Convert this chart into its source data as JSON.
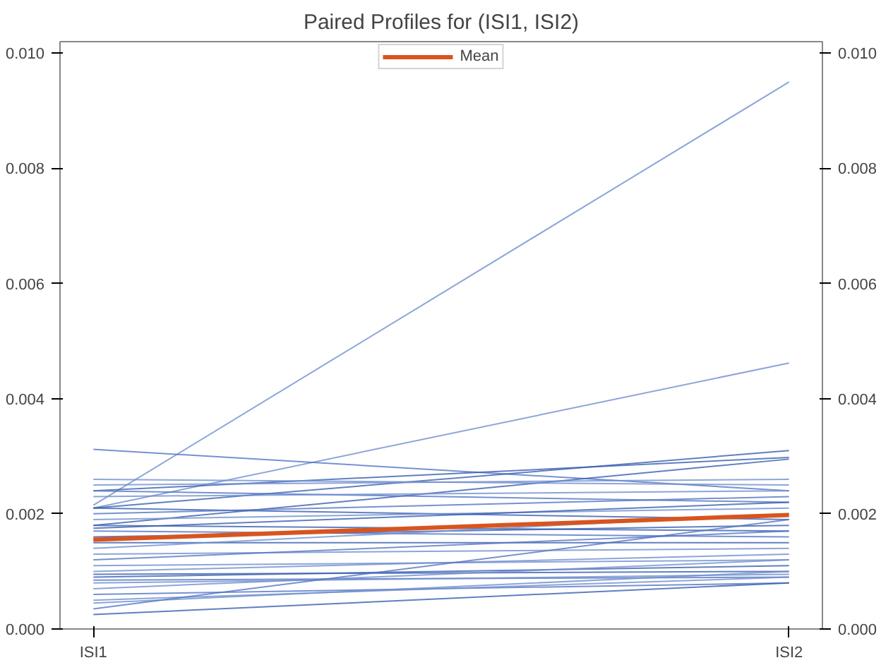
{
  "chart_data": {
    "type": "line",
    "title": "Paired Profiles for (ISI1, ISI2)",
    "categories": [
      "ISI1",
      "ISI2"
    ],
    "ylim": [
      0,
      0.0102
    ],
    "yticks": [
      {
        "value": 0,
        "label": "0.000"
      },
      {
        "value": 0.002,
        "label": "0.002"
      },
      {
        "value": 0.004,
        "label": "0.004"
      },
      {
        "value": 0.006,
        "label": "0.006"
      },
      {
        "value": 0.008,
        "label": "0.008"
      },
      {
        "value": 0.01,
        "label": "0.010"
      }
    ],
    "y2lim": [
      0,
      0.0102
    ],
    "y2ticks": [
      {
        "value": 0,
        "label": "0.000"
      },
      {
        "value": 0.002,
        "label": "0.002"
      },
      {
        "value": 0.004,
        "label": "0.004"
      },
      {
        "value": 0.006,
        "label": "0.006"
      },
      {
        "value": 0.008,
        "label": "0.008"
      },
      {
        "value": 0.01,
        "label": "0.010"
      }
    ],
    "grid": false,
    "legend": "top",
    "marker": "none",
    "line_style": "solid",
    "series": [
      {
        "color": "#6f8fd0",
        "values": [
          0.00215,
          0.0095
        ]
      },
      {
        "color": "#6f8fd0",
        "values": [
          0.0021,
          0.00462
        ]
      },
      {
        "color": "#5476c4",
        "values": [
          0.00312,
          0.0024
        ]
      },
      {
        "color": "#3a5fb0",
        "values": [
          0.0021,
          0.0031
        ]
      },
      {
        "color": "#3a5fb0",
        "values": [
          0.0024,
          0.00298
        ]
      },
      {
        "color": "#3a5fb0",
        "values": [
          0.0018,
          0.00295
        ]
      },
      {
        "color": "#6f8fd0",
        "values": [
          0.0026,
          0.0025
        ]
      },
      {
        "color": "#6f8fd0",
        "values": [
          0.0025,
          0.0026
        ]
      },
      {
        "color": "#5476c4",
        "values": [
          0.0024,
          0.0022
        ]
      },
      {
        "color": "#6f8fd0",
        "values": [
          0.0023,
          0.0024
        ]
      },
      {
        "color": "#3a5fb0",
        "values": [
          0.0021,
          0.0019
        ]
      },
      {
        "color": "#5476c4",
        "values": [
          0.002,
          0.0023
        ]
      },
      {
        "color": "#6f8fd0",
        "values": [
          0.0019,
          0.0021
        ]
      },
      {
        "color": "#3a5fb0",
        "values": [
          0.0018,
          0.0017
        ]
      },
      {
        "color": "#3a5fb0",
        "values": [
          0.00175,
          0.0022
        ]
      },
      {
        "color": "#5476c4",
        "values": [
          0.0017,
          0.0016
        ]
      },
      {
        "color": "#3a5fb0",
        "values": [
          0.0016,
          0.0018
        ]
      },
      {
        "color": "#3a5fb0",
        "values": [
          0.0015,
          0.0015
        ]
      },
      {
        "color": "#6f8fd0",
        "values": [
          0.0014,
          0.002
        ]
      },
      {
        "color": "#6f8fd0",
        "values": [
          0.0013,
          0.0014
        ]
      },
      {
        "color": "#5476c4",
        "values": [
          0.0012,
          0.0017
        ]
      },
      {
        "color": "#6f8fd0",
        "values": [
          0.0011,
          0.0012
        ]
      },
      {
        "color": "#6f8fd0",
        "values": [
          0.001,
          0.0013
        ]
      },
      {
        "color": "#3a5fb0",
        "values": [
          0.00095,
          0.001
        ]
      },
      {
        "color": "#3a5fb0",
        "values": [
          0.0009,
          0.0011
        ]
      },
      {
        "color": "#5476c4",
        "values": [
          0.00085,
          0.0009
        ]
      },
      {
        "color": "#6f8fd0",
        "values": [
          0.0008,
          0.00095
        ]
      },
      {
        "color": "#6f8fd0",
        "values": [
          0.0007,
          0.0012
        ]
      },
      {
        "color": "#5476c4",
        "values": [
          0.0006,
          0.0008
        ]
      },
      {
        "color": "#6f8fd0",
        "values": [
          0.0005,
          0.0009
        ]
      },
      {
        "color": "#6f8fd0",
        "values": [
          0.00045,
          0.001
        ]
      },
      {
        "color": "#5476c4",
        "values": [
          0.00035,
          0.0019
        ]
      },
      {
        "color": "#3a5fb0",
        "values": [
          0.00025,
          0.0008
        ]
      },
      {
        "name": "Mean",
        "color": "#d9541e",
        "values": [
          0.00155,
          0.00198
        ]
      }
    ]
  }
}
